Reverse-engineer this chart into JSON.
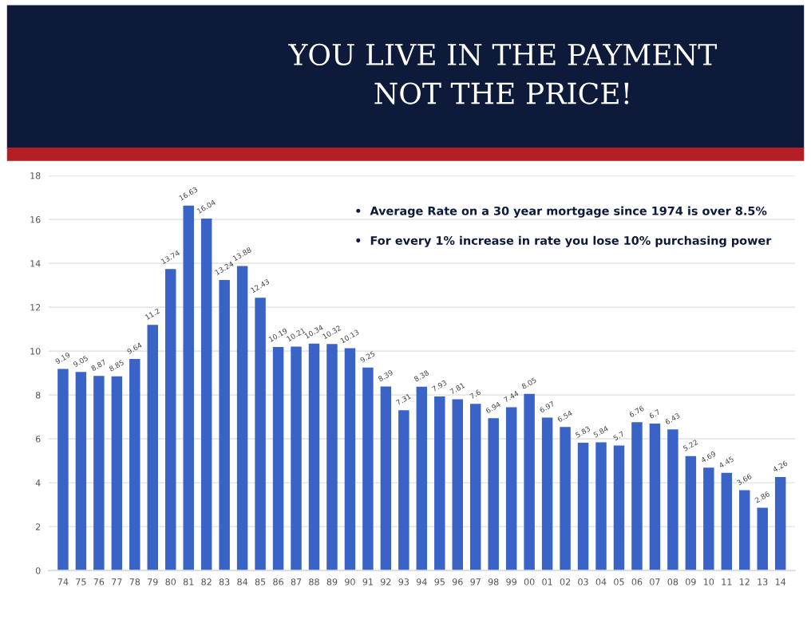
{
  "chart_data": {
    "type": "bar",
    "title": "YOU LIVE IN THE PAYMENT\nNOT THE PRICE!",
    "categories": [
      "74",
      "75",
      "76",
      "77",
      "78",
      "79",
      "80",
      "81",
      "82",
      "83",
      "84",
      "85",
      "86",
      "87",
      "88",
      "89",
      "90",
      "91",
      "92",
      "93",
      "94",
      "95",
      "96",
      "97",
      "98",
      "99",
      "00",
      "01",
      "02",
      "03",
      "04",
      "05",
      "06",
      "07",
      "08",
      "09",
      "10",
      "11",
      "12",
      "13",
      "14"
    ],
    "values": [
      9.19,
      9.05,
      8.87,
      8.85,
      9.64,
      11.2,
      13.74,
      16.63,
      16.04,
      13.24,
      13.88,
      12.43,
      10.19,
      10.21,
      10.34,
      10.32,
      10.13,
      9.25,
      8.39,
      7.31,
      8.38,
      7.93,
      7.81,
      7.6,
      6.94,
      7.44,
      8.05,
      6.97,
      6.54,
      5.83,
      5.84,
      5.7,
      6.76,
      6.7,
      6.43,
      5.22,
      4.69,
      4.45,
      3.66,
      2.86,
      4.26
    ],
    "color": "#3a63c8",
    "data_labels": true,
    "ylim": [
      0,
      18
    ],
    "yticks": [
      0,
      2,
      4,
      6,
      8,
      10,
      12,
      14,
      16,
      18
    ],
    "grid": "y",
    "annotations": [
      "•  Average Rate on a 30 year mortgage since 1974 is over 8.5%",
      "•  For every 1% increase in rate you lose 10% purchasing power"
    ]
  }
}
